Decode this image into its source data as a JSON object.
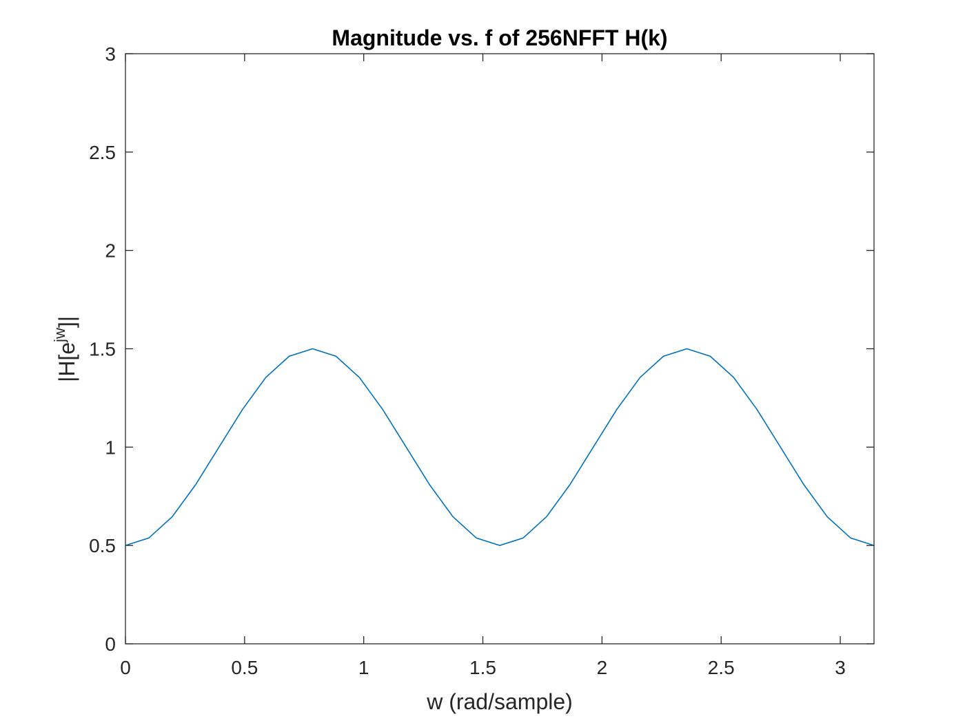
{
  "chart_data": {
    "type": "line",
    "title": "Magnitude vs. f of 256NFFT H(k)",
    "xlabel": "w (rad/sample)",
    "ylabel": {
      "base": "|H[e",
      "superscript": "jw",
      "tail": "]|"
    },
    "xlim": [
      0,
      3.1416
    ],
    "ylim": [
      0,
      3
    ],
    "xticks": [
      0,
      0.5,
      1,
      1.5,
      2,
      2.5,
      3
    ],
    "xtick_labels": [
      "0",
      "0.5",
      "1",
      "1.5",
      "2",
      "2.5",
      "3"
    ],
    "yticks": [
      0,
      0.5,
      1,
      1.5,
      2,
      2.5,
      3
    ],
    "ytick_labels": [
      "0",
      "0.5",
      "1",
      "1.5",
      "2",
      "2.5",
      "3"
    ],
    "grid": false,
    "series": [
      {
        "color": "#0072BD",
        "x": [
          0,
          0.0982,
          0.1963,
          0.2945,
          0.3927,
          0.4909,
          0.589,
          0.6872,
          0.7854,
          0.8836,
          0.9817,
          1.0799,
          1.1781,
          1.2763,
          1.3744,
          1.4726,
          1.5708,
          1.669,
          1.7671,
          1.8653,
          1.9635,
          2.0617,
          2.1598,
          2.258,
          2.3562,
          2.4544,
          2.5525,
          2.6507,
          2.7489,
          2.8471,
          2.9452,
          3.0434,
          3.1416
        ],
        "y": [
          0.5,
          0.538,
          0.646,
          0.809,
          1.0,
          1.191,
          1.354,
          1.462,
          1.5,
          1.462,
          1.354,
          1.191,
          1.0,
          0.809,
          0.646,
          0.538,
          0.5,
          0.538,
          0.646,
          0.809,
          1.0,
          1.191,
          1.354,
          1.462,
          1.5,
          1.462,
          1.354,
          1.191,
          1.0,
          0.809,
          0.646,
          0.538,
          0.5
        ]
      }
    ]
  }
}
